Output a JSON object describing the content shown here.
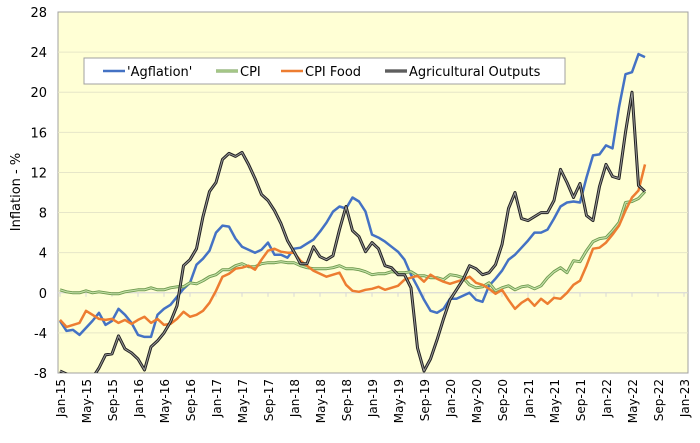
{
  "chart_data": {
    "type": "line",
    "title": "",
    "xlabel": "",
    "ylabel": "Inflation - %",
    "ylim": [
      -8,
      28
    ],
    "yticks": [
      -8,
      -4,
      0,
      4,
      8,
      12,
      16,
      20,
      24,
      28
    ],
    "xticks": [
      "Jan-15",
      "May-15",
      "Sep-15",
      "Jan-16",
      "May-16",
      "Sep-16",
      "Jan-17",
      "May-17",
      "Sep-17",
      "Jan-18",
      "May-18",
      "Sep-18",
      "Jan-19",
      "May-19",
      "Sep-19",
      "Jan-20",
      "May-20",
      "Sep-20",
      "Jan-21",
      "May-21",
      "Sep-21",
      "Jan-22",
      "May-22",
      "Sep-22",
      "Jan-23"
    ],
    "x_start": "Jan-15",
    "x_frequency": "monthly",
    "grid": "horizontal",
    "legend_placement": "top",
    "background_color": "#FFFFD5",
    "series": [
      {
        "name": "'Agflation'",
        "color": "#4472C4",
        "values": [
          -2.8,
          -3.8,
          -3.7,
          -4.2,
          -3.5,
          -2.8,
          -2,
          -3.2,
          -2.8,
          -1.6,
          -2.2,
          -3,
          -4.2,
          -4.4,
          -4.4,
          -2.2,
          -1.6,
          -1.2,
          -0.4,
          0.4,
          1,
          2.8,
          3.4,
          4.2,
          6,
          6.7,
          6.6,
          5.4,
          4.6,
          4.3,
          4,
          4.3,
          5,
          3.8,
          3.8,
          3.5,
          4.4,
          4.5,
          4.9,
          5.3,
          6.1,
          7,
          8.1,
          8.6,
          8.4,
          9.5,
          9.1,
          8.1,
          5.8,
          5.5,
          5.1,
          4.6,
          4.1,
          3.3,
          1.8,
          0.6,
          -0.7,
          -1.8,
          -2,
          -1.6,
          -0.6,
          -0.6,
          -0.3,
          0,
          -0.7,
          -0.9,
          0.7,
          1.4,
          2.2,
          3.3,
          3.8,
          4.5,
          5.2,
          6,
          6,
          6.3,
          7.4,
          8.6,
          9,
          9.1,
          9,
          11.5,
          13.7,
          13.8,
          14.7,
          14.4,
          18.5,
          21.8,
          22,
          23.8,
          23.5
        ]
      },
      {
        "name": "CPI",
        "color": "#8FB86E",
        "values": [
          0.3,
          0.1,
          0,
          0,
          0.2,
          0,
          0.1,
          0,
          -0.1,
          -0.1,
          0.1,
          0.2,
          0.3,
          0.3,
          0.5,
          0.3,
          0.3,
          0.5,
          0.6,
          0.6,
          1,
          0.9,
          1.2,
          1.6,
          1.8,
          2.3,
          2.3,
          2.7,
          2.9,
          2.6,
          2.6,
          2.9,
          3,
          3,
          3.1,
          3,
          3,
          2.7,
          2.5,
          2.4,
          2.4,
          2.4,
          2.5,
          2.7,
          2.4,
          2.4,
          2.3,
          2.1,
          1.8,
          1.9,
          1.9,
          2.1,
          2,
          2,
          2.1,
          1.7,
          1.7,
          1.5,
          1.5,
          1.3,
          1.8,
          1.7,
          1.5,
          0.8,
          0.5,
          0.6,
          1,
          0.2,
          0.5,
          0.7,
          0.3,
          0.6,
          0.7,
          0.4,
          0.7,
          1.5,
          2.1,
          2.5,
          2,
          3.2,
          3.1,
          4.2,
          5.1,
          5.4,
          5.5,
          6.2,
          7,
          9,
          9.1,
          9.4,
          10.1
        ]
      },
      {
        "name": "CPI Food",
        "color": "#ED7D31",
        "values": [
          -2.7,
          -3.4,
          -3.2,
          -3,
          -1.8,
          -2.2,
          -2.6,
          -2.7,
          -2.6,
          -3,
          -2.7,
          -3.1,
          -2.7,
          -2.4,
          -3,
          -2.6,
          -3.2,
          -3.1,
          -2.6,
          -1.9,
          -2.4,
          -2.2,
          -1.8,
          -1,
          0.2,
          1.6,
          1.9,
          2.4,
          2.5,
          2.7,
          2.3,
          3.3,
          4.2,
          4.4,
          4.1,
          4,
          4,
          3.2,
          2.7,
          2.2,
          1.9,
          1.6,
          1.8,
          2,
          0.8,
          0.2,
          0.1,
          0.3,
          0.4,
          0.6,
          0.3,
          0.5,
          0.7,
          1.3,
          1.5,
          1.7,
          1.1,
          1.8,
          1.4,
          1.1,
          0.9,
          1.1,
          1.3,
          1.6,
          1,
          0.8,
          0.4,
          -0.1,
          0.3,
          -0.7,
          -1.6,
          -1,
          -0.6,
          -1.3,
          -0.6,
          -1.1,
          -0.5,
          -0.6,
          0,
          0.8,
          1.2,
          2.7,
          4.4,
          4.5,
          5,
          5.8,
          6.7,
          8.2,
          9.5,
          10.2,
          12.8
        ]
      },
      {
        "name": "Agricultural Outputs",
        "color": "#333333",
        "values": [
          -7.8,
          -8.1,
          -9,
          -9.5,
          -9.5,
          -8.5,
          -7.5,
          -6.2,
          -6.1,
          -4.3,
          -5.6,
          -6,
          -6.6,
          -7.7,
          -5.4,
          -4.8,
          -4,
          -2.9,
          -1.3,
          2.7,
          3.3,
          4.4,
          7.6,
          10.1,
          11,
          13.3,
          13.9,
          13.6,
          14,
          12.8,
          11.4,
          9.8,
          9.2,
          8.2,
          6.9,
          5.2,
          4.1,
          2.9,
          2.9,
          4.6,
          3.6,
          3.3,
          3.7,
          6.3,
          8.6,
          6.2,
          5.6,
          4.1,
          5,
          4.4,
          2.7,
          2.5,
          1.8,
          1.8,
          0.5,
          -5.5,
          -7.8,
          -6.6,
          -4.7,
          -2.6,
          -0.7,
          0.3,
          1.3,
          2.7,
          2.4,
          1.8,
          2,
          2.8,
          4.8,
          8.4,
          10,
          7.4,
          7.2,
          7.6,
          8,
          8,
          9.2,
          12.3,
          11,
          9.5,
          10.9,
          7.7,
          7.2,
          10.6,
          12.8,
          11.6,
          11.4,
          16,
          20,
          10.7,
          10.1
        ]
      }
    ]
  }
}
